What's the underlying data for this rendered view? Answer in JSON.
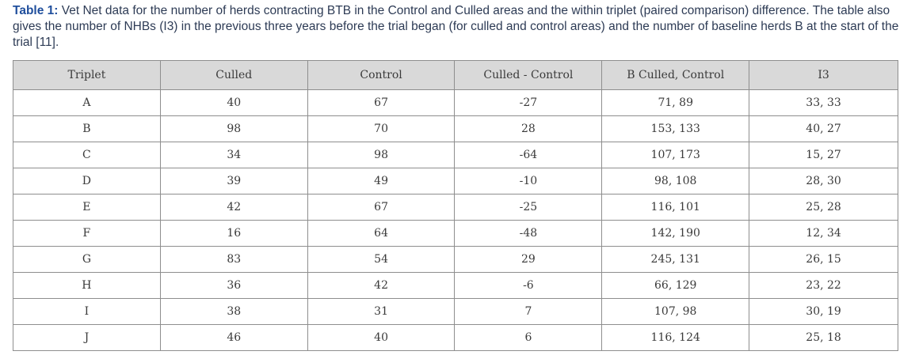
{
  "caption": {
    "label": "Table 1:",
    "text": " Vet Net data for the number of herds contracting BTB in the Control and Culled areas and the within triplet (paired comparison) difference. The table also gives the number of NHBs (I3) in the previous three years before the trial began (for culled and control areas) and the number of baseline herds B at the start of the trial [11]."
  },
  "table": {
    "headers": [
      "Triplet",
      "Culled",
      "Control",
      "Culled - Control",
      "B Culled, Control",
      "I3"
    ],
    "rows": [
      [
        "A",
        "40",
        "67",
        "-27",
        "71, 89",
        "33, 33"
      ],
      [
        "B",
        "98",
        "70",
        "28",
        "153, 133",
        "40, 27"
      ],
      [
        "C",
        "34",
        "98",
        "-64",
        "107, 173",
        "15, 27"
      ],
      [
        "D",
        "39",
        "49",
        "-10",
        "98, 108",
        "28, 30"
      ],
      [
        "E",
        "42",
        "67",
        "-25",
        "116, 101",
        "25, 28"
      ],
      [
        "F",
        "16",
        "64",
        "-48",
        "142, 190",
        "12, 34"
      ],
      [
        "G",
        "83",
        "54",
        "29",
        "245, 131",
        "26, 15"
      ],
      [
        "H",
        "36",
        "42",
        "-6",
        "66, 129",
        "23, 22"
      ],
      [
        "I",
        "38",
        "31",
        "7",
        "107, 98",
        "30, 19"
      ],
      [
        "J",
        "46",
        "40",
        "6",
        "116, 124",
        "25, 18"
      ]
    ]
  }
}
